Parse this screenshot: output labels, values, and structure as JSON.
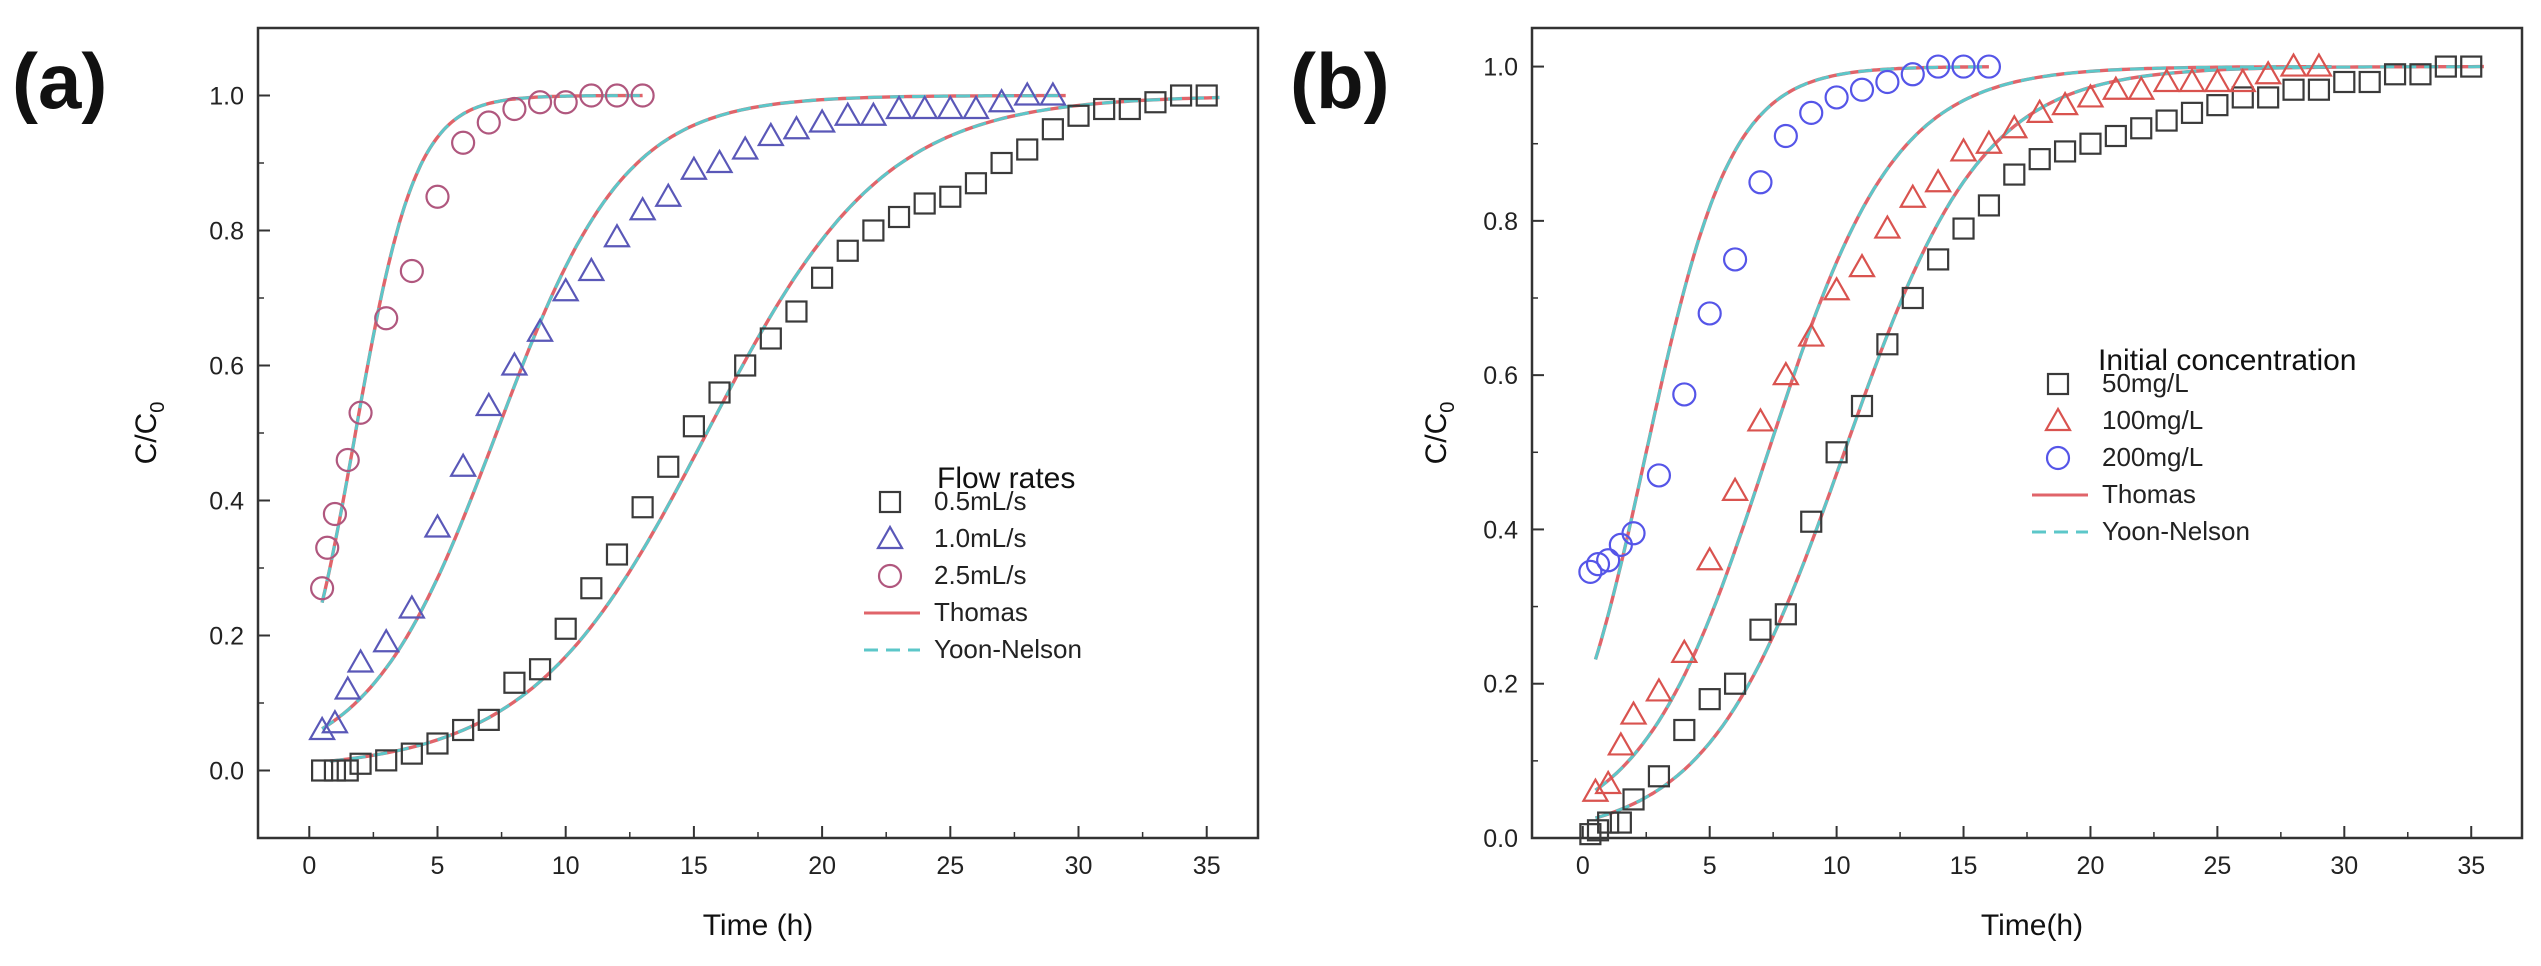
{
  "chart_data": [
    {
      "type": "scatter",
      "panel_label": "(a)",
      "xlabel": "Time (h)",
      "ylabel": "C/C",
      "ylabel_sub": "0",
      "xlim": [
        -2,
        37
      ],
      "ylim": [
        -0.1,
        1.1
      ],
      "xticks": [
        "0",
        "5",
        "10",
        "15",
        "20",
        "25",
        "30",
        "35"
      ],
      "xtick_values": [
        0,
        5,
        10,
        15,
        20,
        25,
        30,
        35
      ],
      "yticks": [
        "0.0",
        "0.2",
        "0.4",
        "0.6",
        "0.8",
        "1.0"
      ],
      "ytick_values": [
        0.0,
        0.2,
        0.4,
        0.6,
        0.8,
        1.0
      ],
      "legend_title": "Flow rates",
      "legend_position": "lower-right",
      "series": [
        {
          "name": "0.5mL/s",
          "marker": "square",
          "color": "#3a3a3a",
          "x": [
            0.5,
            1,
            1.5,
            2,
            3,
            4,
            5,
            6,
            7,
            8,
            9,
            10,
            11,
            12,
            13,
            14,
            15,
            16,
            17,
            18,
            19,
            20,
            21,
            22,
            23,
            24,
            25,
            26,
            27,
            28,
            29,
            30,
            31,
            32,
            33,
            34,
            35
          ],
          "y": [
            0.0,
            0.0,
            0.0,
            0.01,
            0.015,
            0.025,
            0.04,
            0.06,
            0.075,
            0.13,
            0.15,
            0.21,
            0.27,
            0.32,
            0.39,
            0.45,
            0.51,
            0.56,
            0.6,
            0.64,
            0.68,
            0.73,
            0.77,
            0.8,
            0.82,
            0.84,
            0.85,
            0.87,
            0.9,
            0.92,
            0.95,
            0.97,
            0.98,
            0.98,
            0.99,
            1.0,
            1.0
          ]
        },
        {
          "name": "1.0mL/s",
          "marker": "triangle",
          "color": "#5a58b8",
          "x": [
            0.5,
            1,
            1.5,
            2,
            3,
            4,
            5,
            6,
            7,
            8,
            9,
            10,
            11,
            12,
            13,
            14,
            15,
            16,
            17,
            18,
            19,
            20,
            21,
            22,
            23,
            24,
            25,
            26,
            27,
            28,
            29
          ],
          "y": [
            0.06,
            0.07,
            0.12,
            0.16,
            0.19,
            0.24,
            0.36,
            0.45,
            0.54,
            0.6,
            0.65,
            0.71,
            0.74,
            0.79,
            0.83,
            0.85,
            0.89,
            0.9,
            0.92,
            0.94,
            0.95,
            0.96,
            0.97,
            0.97,
            0.98,
            0.98,
            0.98,
            0.98,
            0.99,
            1.0,
            1.0
          ]
        },
        {
          "name": "2.5mL/s",
          "marker": "circle",
          "color": "#b0577e",
          "x": [
            0.5,
            0.7,
            1,
            1.5,
            2,
            3,
            4,
            5,
            6,
            7,
            8,
            9,
            10,
            11,
            12,
            13
          ],
          "y": [
            0.27,
            0.33,
            0.38,
            0.46,
            0.53,
            0.67,
            0.74,
            0.85,
            0.93,
            0.96,
            0.98,
            0.99,
            0.99,
            1.0,
            1.0,
            1.0
          ]
        }
      ],
      "fits": [
        {
          "name": "Thomas",
          "style": "solid",
          "color": "#e0646a",
          "curves": [
            {
              "k": 0.29,
              "t50": 15.5,
              "x0": 0.8,
              "x1": 35.5
            },
            {
              "k": 0.4,
              "t50": 7.3,
              "x0": 0.5,
              "x1": 29.5
            },
            {
              "k": 0.85,
              "t50": 1.8,
              "x0": 0.5,
              "x1": 13
            }
          ]
        },
        {
          "name": "Yoon-Nelson",
          "style": "dashed",
          "color": "#5cc7c9",
          "curves": [
            {
              "k": 0.29,
              "t50": 15.5,
              "x0": 0.8,
              "x1": 35.5
            },
            {
              "k": 0.4,
              "t50": 7.3,
              "x0": 0.5,
              "x1": 29.5
            },
            {
              "k": 0.85,
              "t50": 1.8,
              "x0": 0.5,
              "x1": 13
            }
          ]
        }
      ]
    },
    {
      "type": "scatter",
      "panel_label": "(b)",
      "xlabel": "Time(h)",
      "ylabel": "C/C",
      "ylabel_sub": "0",
      "xlim": [
        -2,
        37
      ],
      "ylim": [
        0.0,
        1.05
      ],
      "xticks": [
        "0",
        "5",
        "10",
        "15",
        "20",
        "25",
        "30",
        "35"
      ],
      "xtick_values": [
        0,
        5,
        10,
        15,
        20,
        25,
        30,
        35
      ],
      "yticks": [
        "0.0",
        "0.2",
        "0.4",
        "0.6",
        "0.8",
        "1.0"
      ],
      "ytick_values": [
        0.0,
        0.2,
        0.4,
        0.6,
        0.8,
        1.0
      ],
      "legend_title": "Initial concentration",
      "legend_position": "center-right",
      "series": [
        {
          "name": "50mg/L",
          "marker": "square",
          "color": "#3a3a3a",
          "x": [
            0.3,
            0.6,
            1,
            1.5,
            2,
            3,
            4,
            5,
            6,
            7,
            8,
            9,
            10,
            11,
            12,
            13,
            14,
            15,
            16,
            17,
            18,
            19,
            20,
            21,
            22,
            23,
            24,
            25,
            26,
            27,
            28,
            29,
            30,
            31,
            32,
            33,
            34,
            35
          ],
          "y": [
            0.005,
            0.01,
            0.02,
            0.02,
            0.05,
            0.08,
            0.14,
            0.18,
            0.2,
            0.27,
            0.29,
            0.41,
            0.5,
            0.56,
            0.64,
            0.7,
            0.75,
            0.79,
            0.82,
            0.86,
            0.88,
            0.89,
            0.9,
            0.91,
            0.92,
            0.93,
            0.94,
            0.95,
            0.96,
            0.96,
            0.97,
            0.97,
            0.98,
            0.98,
            0.99,
            0.99,
            1.0,
            1.0
          ]
        },
        {
          "name": "100mg/L",
          "marker": "triangle",
          "color": "#d9534f",
          "x": [
            0.5,
            1,
            1.5,
            2,
            3,
            4,
            5,
            6,
            7,
            8,
            9,
            10,
            11,
            12,
            13,
            14,
            15,
            16,
            17,
            18,
            19,
            20,
            21,
            22,
            23,
            24,
            25,
            26,
            27,
            28,
            29
          ],
          "y": [
            0.06,
            0.07,
            0.12,
            0.16,
            0.19,
            0.24,
            0.36,
            0.45,
            0.54,
            0.6,
            0.65,
            0.71,
            0.74,
            0.79,
            0.83,
            0.85,
            0.89,
            0.9,
            0.92,
            0.94,
            0.95,
            0.96,
            0.97,
            0.97,
            0.98,
            0.98,
            0.98,
            0.98,
            0.99,
            1.0,
            1.0
          ]
        },
        {
          "name": "200mg/L",
          "marker": "circle",
          "color": "#5555e8",
          "x": [
            0.3,
            0.6,
            1,
            1.5,
            2,
            3,
            4,
            5,
            6,
            7,
            8,
            9,
            10,
            11,
            12,
            13,
            14,
            15,
            16
          ],
          "y": [
            0.345,
            0.355,
            0.36,
            0.38,
            0.395,
            0.47,
            0.575,
            0.68,
            0.75,
            0.85,
            0.91,
            0.94,
            0.96,
            0.97,
            0.98,
            0.99,
            1.0,
            1.0,
            1.0
          ]
        }
      ],
      "fits": [
        {
          "name": "Thomas",
          "style": "solid",
          "color": "#e0646a",
          "curves": [
            {
              "k": 0.37,
              "t50": 10.3,
              "x0": 0.5,
              "x1": 35.5
            },
            {
              "k": 0.4,
              "t50": 7.3,
              "x0": 0.5,
              "x1": 29.5
            },
            {
              "k": 0.6,
              "t50": 2.5,
              "x0": 0.5,
              "x1": 16
            }
          ]
        },
        {
          "name": "Yoon-Nelson",
          "style": "dashed",
          "color": "#5cc7c9",
          "curves": [
            {
              "k": 0.37,
              "t50": 10.3,
              "x0": 0.5,
              "x1": 35.5
            },
            {
              "k": 0.4,
              "t50": 7.3,
              "x0": 0.5,
              "x1": 29.5
            },
            {
              "k": 0.6,
              "t50": 2.5,
              "x0": 0.5,
              "x1": 16
            }
          ]
        }
      ]
    }
  ]
}
